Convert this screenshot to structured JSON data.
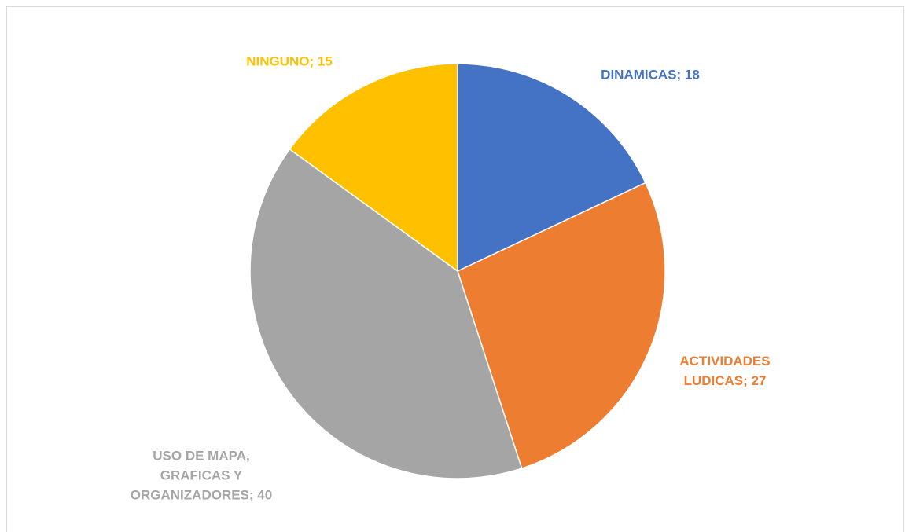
{
  "chart_data": {
    "type": "pie",
    "categories": [
      "DINAMICAS",
      "ACTIVIDADES LUDICAS",
      "USO DE MAPA, GRAFICAS Y ORGANIZADORES",
      "NINGUNO"
    ],
    "values": [
      18,
      27,
      40,
      15
    ],
    "colors": [
      "#4472c4",
      "#ed7d31",
      "#a5a5a5",
      "#ffc000"
    ],
    "label_separator": "; "
  }
}
